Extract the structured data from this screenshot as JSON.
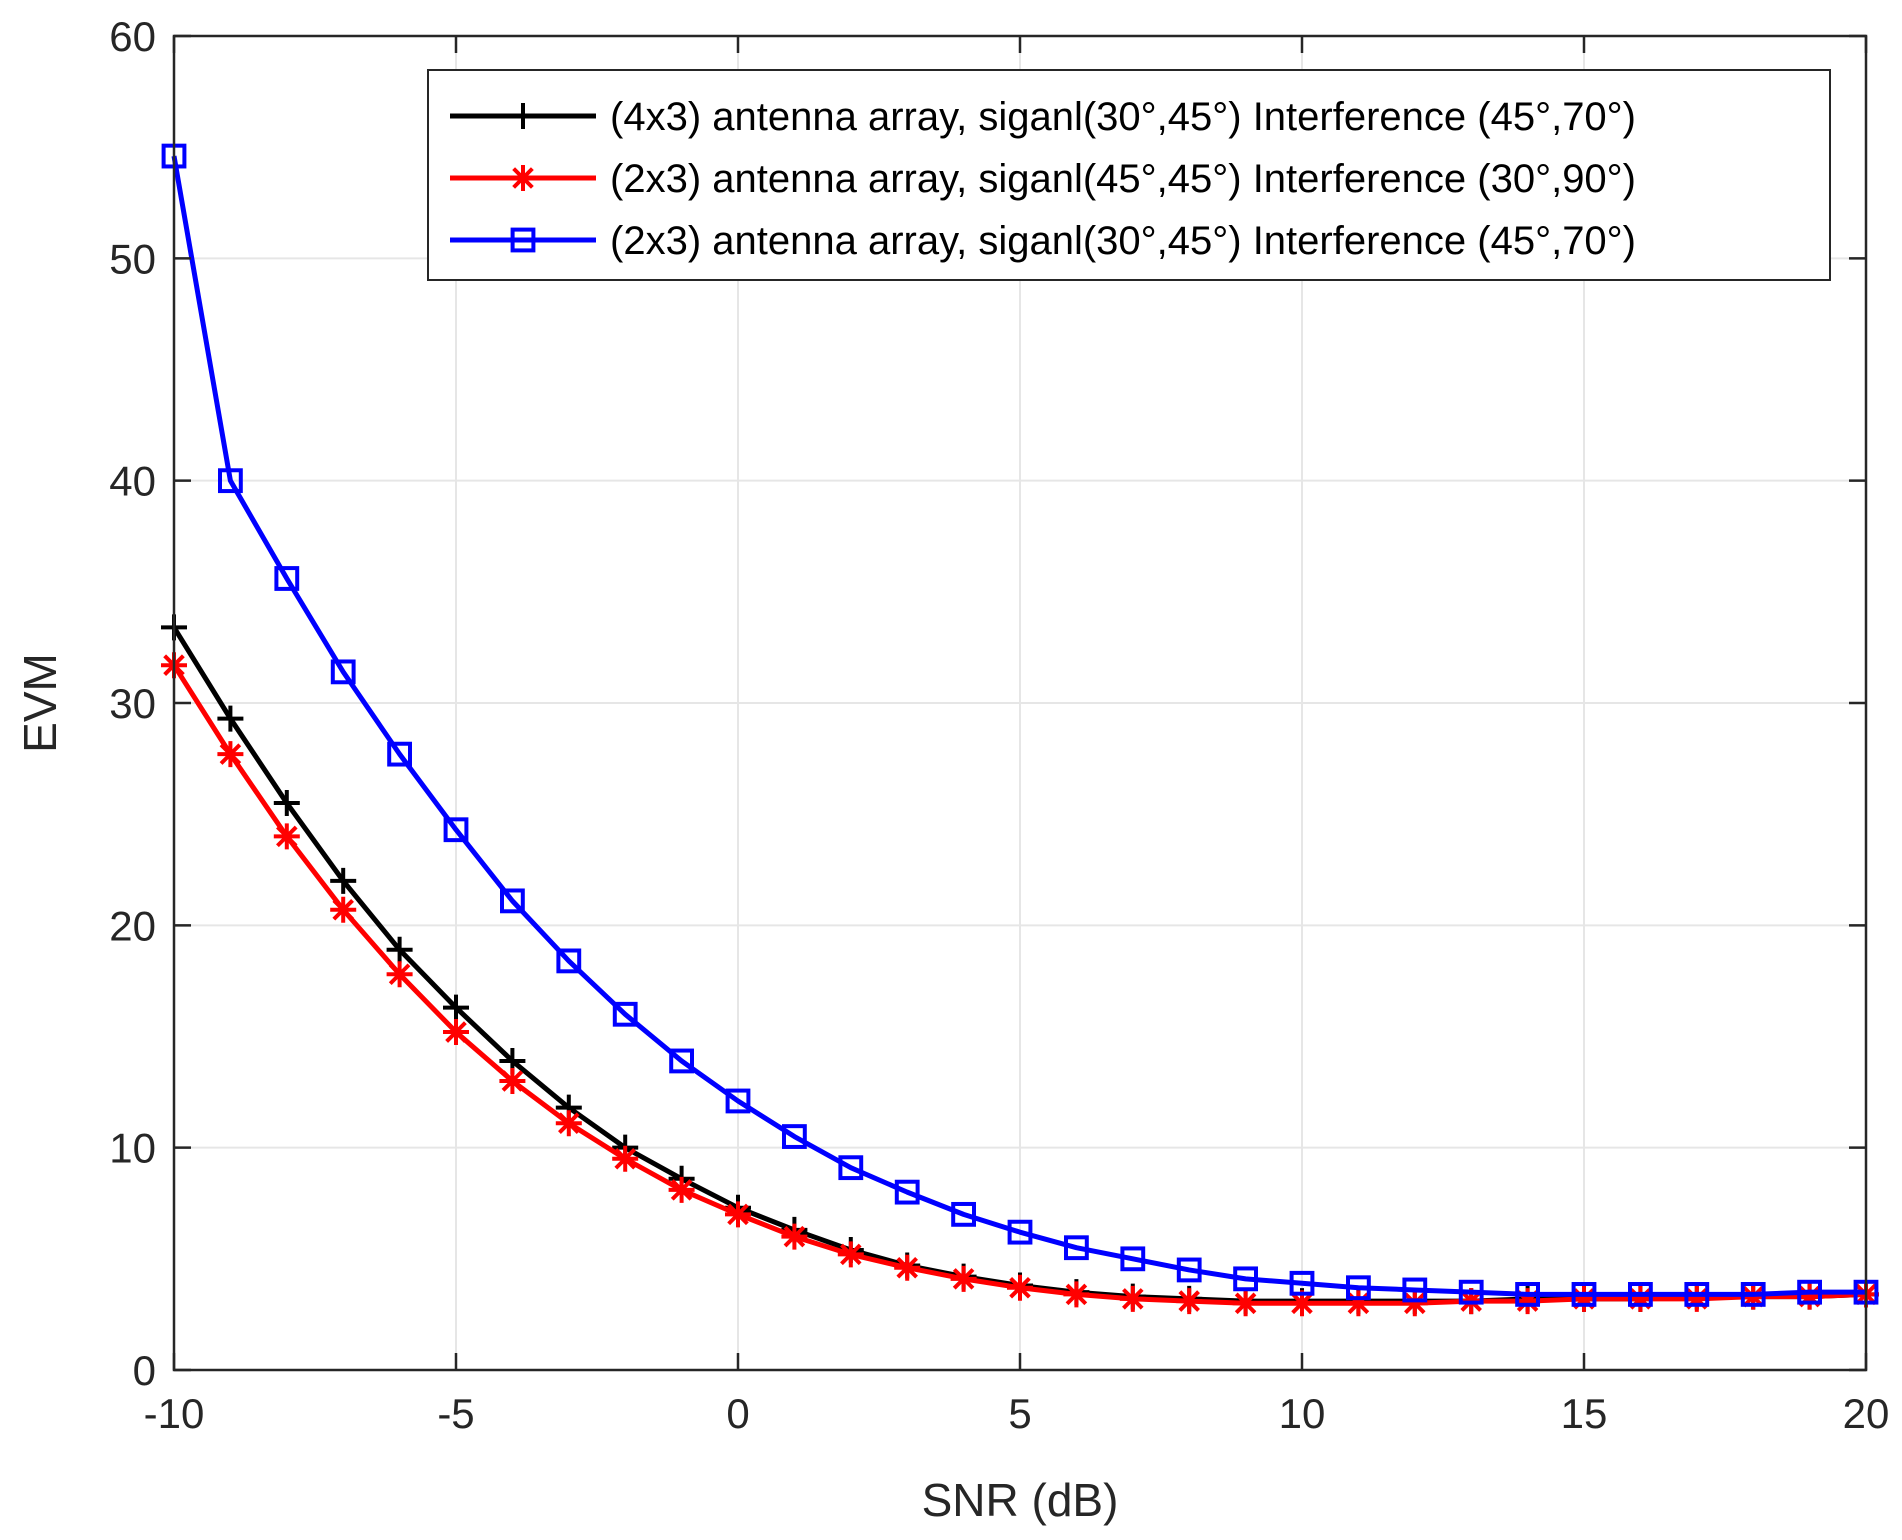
{
  "chart_data": {
    "type": "line",
    "title": "",
    "xlabel": "SNR (dB)",
    "ylabel": "EVM",
    "xlim": [
      -10,
      20
    ],
    "ylim": [
      0,
      60
    ],
    "xticks": [
      -10,
      -5,
      0,
      5,
      10,
      15,
      20
    ],
    "yticks": [
      0,
      10,
      20,
      30,
      40,
      50,
      60
    ],
    "xtick_labels": [
      "-10",
      "-5",
      "0",
      "5",
      "10",
      "15",
      "20"
    ],
    "ytick_labels": [
      "0",
      "10",
      "20",
      "30",
      "40",
      "50",
      "60"
    ],
    "grid": true,
    "legend_position": "top-right",
    "x": [
      -10,
      -9,
      -8,
      -7,
      -6,
      -5,
      -4,
      -3,
      -2,
      -1,
      0,
      1,
      2,
      3,
      4,
      5,
      6,
      7,
      8,
      9,
      10,
      11,
      12,
      13,
      14,
      15,
      16,
      17,
      18,
      19,
      20
    ],
    "series": [
      {
        "name": "(4x3) antenna array, siganl(30°,45°) Interference (45°,70°)",
        "color": "#000000",
        "marker": "plus",
        "values": [
          33.4,
          29.3,
          25.5,
          22.0,
          18.9,
          16.3,
          13.9,
          11.8,
          10.0,
          8.6,
          7.3,
          6.3,
          5.4,
          4.7,
          4.2,
          3.8,
          3.5,
          3.3,
          3.2,
          3.1,
          3.1,
          3.1,
          3.1,
          3.1,
          3.2,
          3.2,
          3.2,
          3.3,
          3.3,
          3.3,
          3.4
        ]
      },
      {
        "name": "(2x3) antenna array, siganl(45°,45°) Interference (30°,90°)",
        "color": "#ff0000",
        "marker": "asterisk",
        "values": [
          31.7,
          27.7,
          24.0,
          20.7,
          17.8,
          15.2,
          13.0,
          11.1,
          9.5,
          8.1,
          7.0,
          6.0,
          5.2,
          4.6,
          4.1,
          3.7,
          3.4,
          3.2,
          3.1,
          3.0,
          3.0,
          3.0,
          3.0,
          3.1,
          3.1,
          3.2,
          3.2,
          3.2,
          3.3,
          3.3,
          3.4
        ]
      },
      {
        "name": "(2x3) antenna array, siganl(30°,45°) Interference (45°,70°)",
        "color": "#0000ff",
        "marker": "square",
        "values": [
          54.6,
          40.0,
          35.6,
          31.4,
          27.7,
          24.3,
          21.1,
          18.4,
          16.0,
          13.9,
          12.1,
          10.5,
          9.1,
          8.0,
          7.0,
          6.2,
          5.5,
          5.0,
          4.5,
          4.1,
          3.9,
          3.7,
          3.6,
          3.5,
          3.4,
          3.4,
          3.4,
          3.4,
          3.4,
          3.5,
          3.5
        ]
      }
    ]
  }
}
